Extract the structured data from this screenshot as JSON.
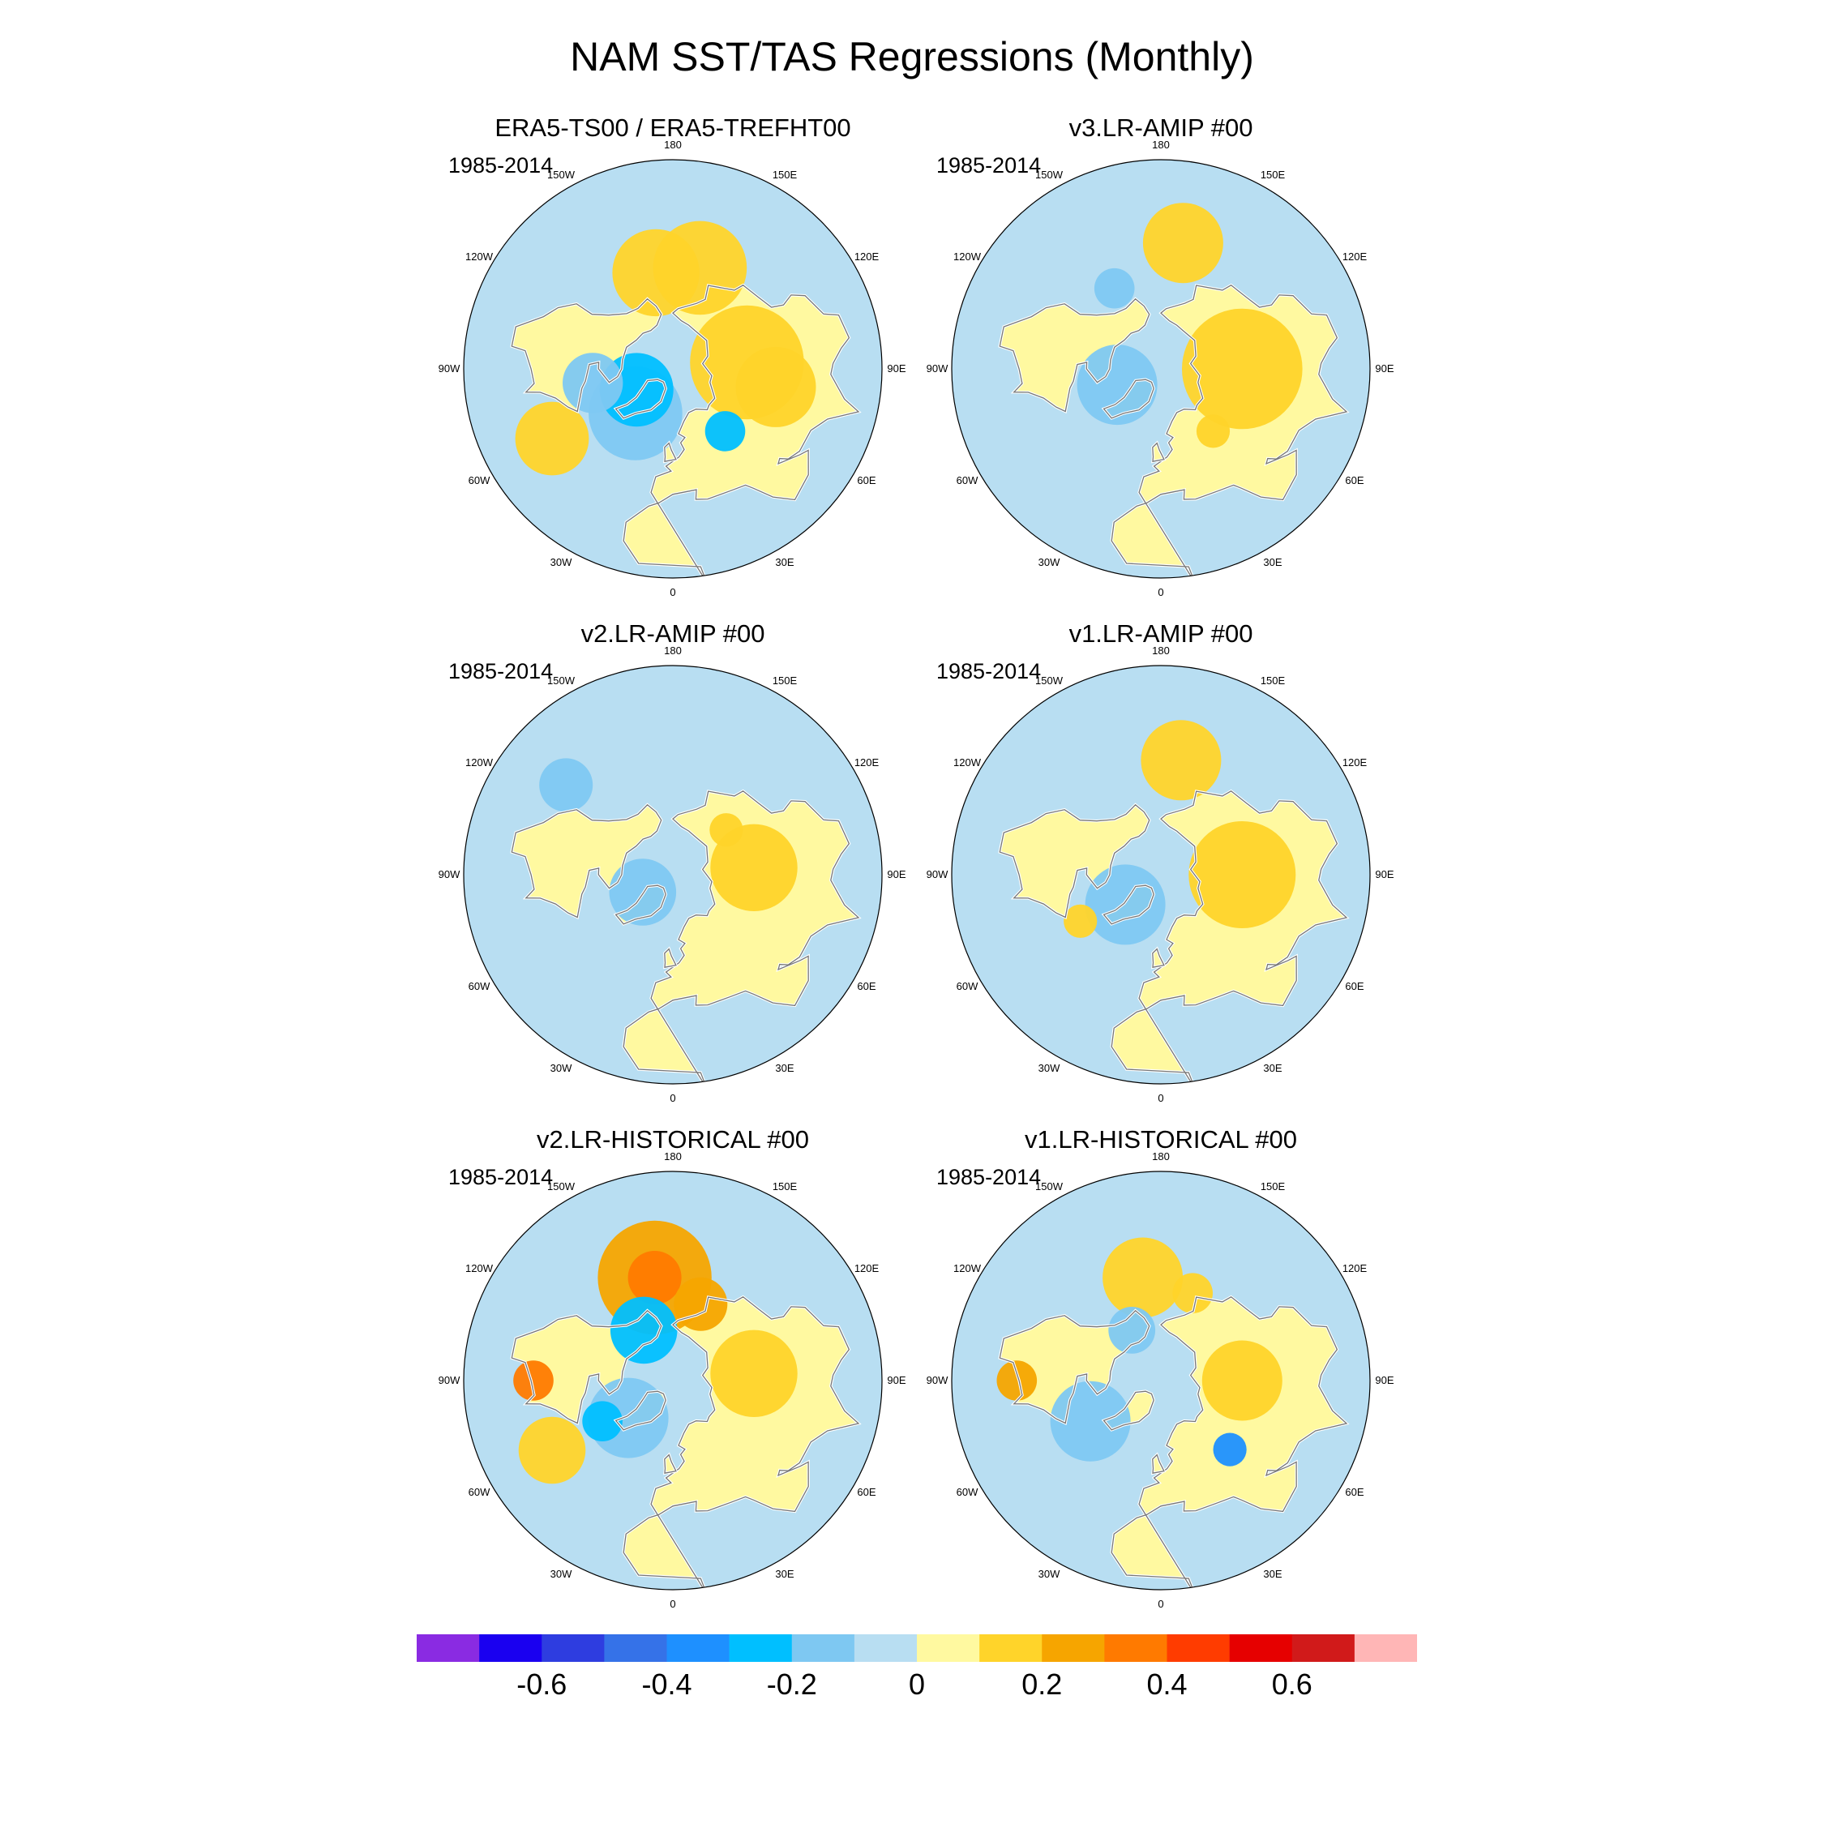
{
  "title": "NAM SST/TAS Regressions (Monthly)",
  "lon_labels": [
    "180",
    "150E",
    "120E",
    "90E",
    "60E",
    "30E",
    "0",
    "30W",
    "60W",
    "90W",
    "120W",
    "150W"
  ],
  "panels": [
    {
      "title": "ERA5-TS00 / ERA5-TREFHT00",
      "period": "1985-2014",
      "blobs": [
        {
          "lon": -170,
          "lat": 48,
          "r": 0.13,
          "level": 1
        },
        {
          "lon": 165,
          "lat": 45,
          "r": 0.14,
          "level": 1
        },
        {
          "lon": 95,
          "lat": 58,
          "r": 0.17,
          "level": 1
        },
        {
          "lon": 80,
          "lat": 45,
          "r": 0.12,
          "level": 1
        },
        {
          "lon": -60,
          "lat": 30,
          "r": 0.11,
          "level": 1
        },
        {
          "lon": -40,
          "lat": 65,
          "r": 0.14,
          "level": -1
        },
        {
          "lon": -60,
          "lat": 72,
          "r": 0.11,
          "level": -2
        },
        {
          "lon": -80,
          "lat": 55,
          "r": 0.09,
          "level": -1
        },
        {
          "lon": 40,
          "lat": 55,
          "r": 0.06,
          "level": -2
        }
      ]
    },
    {
      "title": "v3.LR-AMIP  #00",
      "period": "1985-2014",
      "blobs": [
        {
          "lon": 90,
          "lat": 55,
          "r": 0.18,
          "level": 1
        },
        {
          "lon": 170,
          "lat": 35,
          "r": 0.12,
          "level": 1
        },
        {
          "lon": -150,
          "lat": 50,
          "r": 0.06,
          "level": -1
        },
        {
          "lon": -70,
          "lat": 70,
          "r": 0.12,
          "level": -1
        },
        {
          "lon": 40,
          "lat": 55,
          "r": 0.05,
          "level": 1
        }
      ]
    },
    {
      "title": "v2.LR-AMIP  #00",
      "period": "1985-2014",
      "blobs": [
        {
          "lon": 95,
          "lat": 55,
          "r": 0.13,
          "level": 1
        },
        {
          "lon": 130,
          "lat": 60,
          "r": 0.05,
          "level": 1
        },
        {
          "lon": -60,
          "lat": 75,
          "r": 0.1,
          "level": -1
        },
        {
          "lon": -130,
          "lat": 30,
          "r": 0.08,
          "level": -1
        }
      ]
    },
    {
      "title": "v1.LR-AMIP  #00",
      "period": "1985-2014",
      "blobs": [
        {
          "lon": 90,
          "lat": 55,
          "r": 0.16,
          "level": 1
        },
        {
          "lon": 170,
          "lat": 40,
          "r": 0.12,
          "level": 1
        },
        {
          "lon": -50,
          "lat": 70,
          "r": 0.12,
          "level": -1
        },
        {
          "lon": -60,
          "lat": 50,
          "r": 0.05,
          "level": 1
        }
      ]
    },
    {
      "title": "v2.LR-HISTORICAL  #00",
      "period": "1985-2014",
      "blobs": [
        {
          "lon": -170,
          "lat": 45,
          "r": 0.17,
          "level": 2
        },
        {
          "lon": -170,
          "lat": 45,
          "r": 0.08,
          "level": 3
        },
        {
          "lon": 160,
          "lat": 55,
          "r": 0.08,
          "level": 2
        },
        {
          "lon": 95,
          "lat": 55,
          "r": 0.13,
          "level": 1
        },
        {
          "lon": -90,
          "lat": 30,
          "r": 0.06,
          "level": 3
        },
        {
          "lon": -60,
          "lat": 30,
          "r": 0.1,
          "level": 1
        },
        {
          "lon": -150,
          "lat": 65,
          "r": 0.1,
          "level": -2
        },
        {
          "lon": -50,
          "lat": 65,
          "r": 0.12,
          "level": -1
        },
        {
          "lon": -60,
          "lat": 55,
          "r": 0.06,
          "level": -2
        }
      ]
    },
    {
      "title": "v1.LR-HISTORICAL  #00",
      "period": "1985-2014",
      "blobs": [
        {
          "lon": -170,
          "lat": 45,
          "r": 0.12,
          "level": 1
        },
        {
          "lon": 90,
          "lat": 55,
          "r": 0.12,
          "level": 1
        },
        {
          "lon": -90,
          "lat": 28,
          "r": 0.06,
          "level": 2
        },
        {
          "lon": -60,
          "lat": 55,
          "r": 0.12,
          "level": -1
        },
        {
          "lon": 45,
          "lat": 48,
          "r": 0.05,
          "level": -3
        },
        {
          "lon": -150,
          "lat": 65,
          "r": 0.07,
          "level": -1
        },
        {
          "lon": 160,
          "lat": 50,
          "r": 0.06,
          "level": 1
        }
      ]
    }
  ],
  "colorbar": {
    "colors": [
      "#8a2be2",
      "#1a00f0",
      "#2e3de0",
      "#3572e8",
      "#1e90ff",
      "#00bfff",
      "#7ec8f2",
      "#b8def2",
      "#fff9a0",
      "#ffd42a",
      "#f6a500",
      "#ff7a00",
      "#ff3c00",
      "#e60000",
      "#d11a1a",
      "#ffb6b6"
    ],
    "ticks": [
      "-0.6",
      "-0.4",
      "-0.2",
      "0",
      "0.2",
      "0.4",
      "0.6"
    ]
  }
}
